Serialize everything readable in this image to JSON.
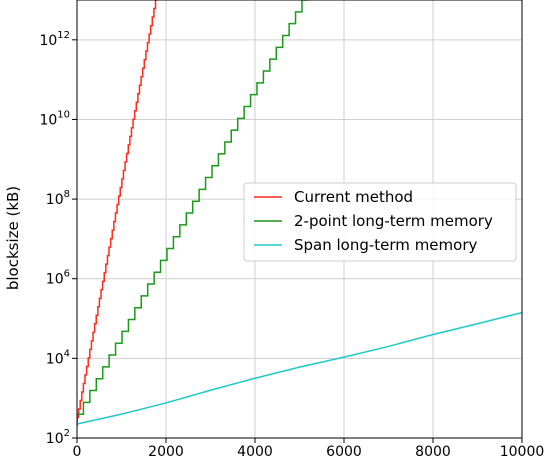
{
  "chart_data": {
    "type": "line",
    "title": "",
    "xlabel": "",
    "ylabel": "blocksize (kB)",
    "xlim": [
      0,
      10000
    ],
    "ylim_exponent": [
      2,
      13
    ],
    "yscale": "log",
    "grid": true,
    "legend_position": "center-right",
    "x_ticks": [
      "0",
      "2000",
      "4000",
      "6000",
      "8000",
      "10000"
    ],
    "x_tick_values": [
      0,
      2000,
      4000,
      6000,
      8000,
      10000
    ],
    "y_ticks": [
      {
        "base": "10",
        "exp": "2",
        "value": 2
      },
      {
        "base": "10",
        "exp": "4",
        "value": 4
      },
      {
        "base": "10",
        "exp": "6",
        "value": 6
      },
      {
        "base": "10",
        "exp": "8",
        "value": 8
      },
      {
        "base": "10",
        "exp": "10",
        "value": 10
      },
      {
        "base": "10",
        "exp": "12",
        "value": 12
      }
    ],
    "series": [
      {
        "name": "Current method",
        "color": "#ff2a1a",
        "style": "step",
        "x_start": 0,
        "x_end": 1800,
        "y_start_exp": 2.3,
        "y_end_exp": 13.0,
        "steps": 50
      },
      {
        "name": "2-point long-term memory",
        "color": "#1a9a1a",
        "style": "step",
        "x_start": 0,
        "x_end": 5200,
        "y_start_exp": 2.3,
        "y_end_exp": 13.0,
        "steps": 36
      },
      {
        "name": "Span long-term memory",
        "color": "#1fc9c9",
        "style": "curve",
        "points": [
          [
            0,
            2.35
          ],
          [
            1000,
            2.6
          ],
          [
            2000,
            2.88
          ],
          [
            3000,
            3.2
          ],
          [
            4000,
            3.5
          ],
          [
            5000,
            3.78
          ],
          [
            6000,
            4.03
          ],
          [
            7000,
            4.3
          ],
          [
            8000,
            4.6
          ],
          [
            9000,
            4.87
          ],
          [
            10000,
            5.15
          ]
        ]
      }
    ]
  }
}
